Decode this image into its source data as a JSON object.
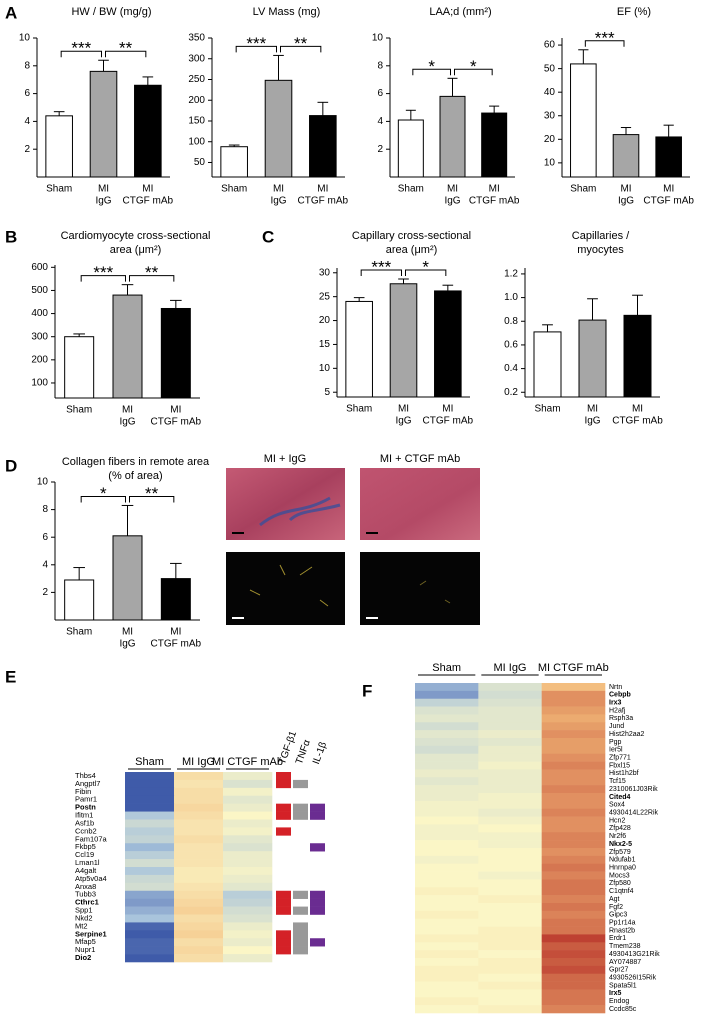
{
  "micrographs": {
    "labels": [
      "MI + IgG",
      "MI + CTGF mAb"
    ]
  },
  "chart_data": [
    {
      "type": "bar",
      "panel_label": "A",
      "title": [
        "HW / BW (mg/g)"
      ],
      "categories": [
        [
          "Sham"
        ],
        [
          "MI",
          "IgG"
        ],
        [
          "MI",
          "CTGF mAb"
        ]
      ],
      "values": [
        4.4,
        7.6,
        6.6
      ],
      "errors": [
        0.3,
        0.8,
        0.6
      ],
      "colors": [
        "#ffffff",
        "#a6a6a6",
        "#000000"
      ],
      "ylim": [
        0,
        10
      ],
      "yticks": [
        2,
        4,
        6,
        8,
        10
      ],
      "comparisons": [
        {
          "groups": [
            0,
            1
          ],
          "label": "***"
        },
        {
          "groups": [
            1,
            2
          ],
          "label": "**"
        }
      ]
    },
    {
      "type": "bar",
      "title": [
        "LV Mass (mg)"
      ],
      "categories": [
        [
          "Sham"
        ],
        [
          "MI",
          "IgG"
        ],
        [
          "MI",
          "CTGF mAb"
        ]
      ],
      "values": [
        88,
        248,
        163
      ],
      "errors": [
        4,
        60,
        32
      ],
      "colors": [
        "#ffffff",
        "#a6a6a6",
        "#000000"
      ],
      "ylim": [
        15,
        350
      ],
      "yticks": [
        50,
        100,
        150,
        200,
        250,
        300,
        350
      ],
      "comparisons": [
        {
          "groups": [
            0,
            1
          ],
          "label": "***"
        },
        {
          "groups": [
            1,
            2
          ],
          "label": "**"
        }
      ]
    },
    {
      "type": "bar",
      "title": [
        "LAA;d (mm²)"
      ],
      "categories": [
        [
          "Sham"
        ],
        [
          "MI",
          "IgG"
        ],
        [
          "MI",
          "CTGF mAb"
        ]
      ],
      "values": [
        4.1,
        5.8,
        4.6
      ],
      "errors": [
        0.7,
        1.3,
        0.5
      ],
      "colors": [
        "#ffffff",
        "#a6a6a6",
        "#000000"
      ],
      "ylim": [
        0,
        10
      ],
      "yticks": [
        2,
        4,
        6,
        8,
        10
      ],
      "comparisons": [
        {
          "groups": [
            0,
            1
          ],
          "label": "*"
        },
        {
          "groups": [
            1,
            2
          ],
          "label": "*"
        }
      ]
    },
    {
      "type": "bar",
      "title": [
        "EF (%)"
      ],
      "categories": [
        [
          "Sham"
        ],
        [
          "MI",
          "IgG"
        ],
        [
          "MI",
          "CTGF mAb"
        ]
      ],
      "values": [
        52,
        22,
        21
      ],
      "errors": [
        6,
        3,
        5
      ],
      "colors": [
        "#ffffff",
        "#a6a6a6",
        "#000000"
      ],
      "ylim": [
        4,
        63
      ],
      "yticks": [
        10,
        20,
        30,
        40,
        50,
        60
      ],
      "comparisons": [
        {
          "groups": [
            0,
            1
          ],
          "label": "***"
        }
      ]
    },
    {
      "type": "bar",
      "panel_label": "B",
      "title": [
        "Cardiomyocyte cross-sectional",
        "area (μm²)"
      ],
      "categories": [
        [
          "Sham"
        ],
        [
          "MI",
          "IgG"
        ],
        [
          "MI",
          "CTGF mAb"
        ]
      ],
      "values": [
        300,
        480,
        422
      ],
      "errors": [
        12,
        45,
        35
      ],
      "colors": [
        "#ffffff",
        "#a6a6a6",
        "#000000"
      ],
      "ylim": [
        35,
        610
      ],
      "yticks": [
        100,
        200,
        300,
        400,
        500,
        600
      ],
      "comparisons": [
        {
          "groups": [
            0,
            1
          ],
          "label": "***"
        },
        {
          "groups": [
            1,
            2
          ],
          "label": "**"
        }
      ]
    },
    {
      "type": "bar",
      "panel_label": "C",
      "title": [
        "Capillary cross-sectional",
        "area (μm²)"
      ],
      "categories": [
        [
          "Sham"
        ],
        [
          "MI",
          "IgG"
        ],
        [
          "MI",
          "CTGF mAb"
        ]
      ],
      "values": [
        24,
        27.7,
        26.2
      ],
      "errors": [
        0.8,
        1,
        1.2
      ],
      "colors": [
        "#ffffff",
        "#a6a6a6",
        "#000000"
      ],
      "ylim": [
        4,
        31
      ],
      "yticks": [
        5,
        10,
        15,
        20,
        25,
        30
      ],
      "comparisons": [
        {
          "groups": [
            0,
            1
          ],
          "label": "***"
        },
        {
          "groups": [
            1,
            2
          ],
          "label": "*"
        }
      ]
    },
    {
      "type": "bar",
      "title": [
        "Capillaries /",
        "myocytes"
      ],
      "categories": [
        [
          "Sham"
        ],
        [
          "MI",
          "IgG"
        ],
        [
          "MI",
          "CTGF mAb"
        ]
      ],
      "values": [
        0.71,
        0.81,
        0.85
      ],
      "errors": [
        0.06,
        0.18,
        0.17
      ],
      "colors": [
        "#ffffff",
        "#a6a6a6",
        "#000000"
      ],
      "ylim": [
        0.16,
        1.25
      ],
      "yticks": [
        0.2,
        0.4,
        0.6,
        0.8,
        {
          "value": 1,
          "label": "1.0"
        },
        1.2
      ],
      "comparisons": []
    },
    {
      "type": "bar",
      "panel_label": "D",
      "title": [
        "Collagen fibers in remote area",
        "(% of area)"
      ],
      "categories": [
        [
          "Sham"
        ],
        [
          "MI",
          "IgG"
        ],
        [
          "MI",
          "CTGF mAb"
        ]
      ],
      "values": [
        2.9,
        6.1,
        3.0
      ],
      "errors": [
        0.9,
        2.2,
        1.1
      ],
      "colors": [
        "#ffffff",
        "#a6a6a6",
        "#000000"
      ],
      "ylim": [
        0,
        10
      ],
      "yticks": [
        2,
        4,
        6,
        8,
        10
      ],
      "comparisons": [
        {
          "groups": [
            0,
            1
          ],
          "label": "*"
        },
        {
          "groups": [
            1,
            2
          ],
          "label": "**"
        }
      ]
    },
    {
      "type": "heatmap",
      "panel_label": "E",
      "groups": [
        "Sham",
        "MI IgG",
        "MI CTGF mAb"
      ],
      "rows": [
        "Thbs4",
        "Angptl7",
        "Fibin",
        "Pamr1",
        "Postn",
        "Ifitm1",
        "Asf1b",
        "Ccnb2",
        "Fam107a",
        "Fkbp5",
        "Ccl19",
        "Lman1l",
        "A4galt",
        "Atp5v0a4",
        "Anxa8",
        "Tubb3",
        "Cthrc1",
        "Spp1",
        "Nkd2",
        "Mt2",
        "Serpine1",
        "Mfap5",
        "Nupr1",
        "Dio2"
      ],
      "highlight_rows": [
        4,
        16,
        20,
        23
      ],
      "highlight_color": "#d42127",
      "values": [
        [
          -2,
          0.4,
          -0.2
        ],
        [
          -2,
          0.3,
          -0.4
        ],
        [
          -2,
          0.4,
          -0.1
        ],
        [
          -2,
          0.4,
          -0.3
        ],
        [
          -2,
          0.5,
          -0.2
        ],
        [
          -0.9,
          0.4,
          0
        ],
        [
          -0.6,
          0.3,
          -0.2
        ],
        [
          -0.8,
          0.3,
          -0.1
        ],
        [
          -0.7,
          0.4,
          -0.3
        ],
        [
          -1.1,
          0.3,
          -0.4
        ],
        [
          -0.8,
          0.3,
          -0.2
        ],
        [
          -0.5,
          0.3,
          -0.2
        ],
        [
          -0.9,
          0.2,
          -0.1
        ],
        [
          -0.6,
          0.2,
          -0.2
        ],
        [
          -0.5,
          0.3,
          -0.3
        ],
        [
          -1.3,
          0.4,
          -0.8
        ],
        [
          -1.4,
          0.5,
          -0.7
        ],
        [
          -1.2,
          0.6,
          -0.5
        ],
        [
          -1,
          0.4,
          -0.4
        ],
        [
          -1.9,
          0.5,
          -0.2
        ],
        [
          -2,
          0.6,
          -0.1
        ],
        [
          -1.9,
          0.4,
          -0.2
        ],
        [
          -1.9,
          0.5,
          0
        ],
        [
          -2,
          0.4,
          -0.2
        ]
      ],
      "vlim": [
        -2,
        2
      ],
      "colors": [
        "#3f5ba9",
        "#a9c4dc",
        "#fbf6c6",
        "#f2b878",
        "#b8342a"
      ],
      "annotations": [
        {
          "name": "TGF-β1",
          "color": "#d42127",
          "rows": [
            0,
            1,
            4,
            5,
            7,
            15,
            16,
            17,
            20,
            21,
            22
          ]
        },
        {
          "name": "TNFα",
          "color": "#999999",
          "rows": [
            1,
            4,
            5,
            15,
            17,
            19,
            20,
            21,
            22
          ]
        },
        {
          "name": "IL-1β",
          "color": "#6a2c91",
          "rows": [
            4,
            5,
            9,
            15,
            16,
            17,
            21
          ]
        }
      ]
    },
    {
      "type": "heatmap",
      "panel_label": "F",
      "groups": [
        "Sham",
        "MI IgG",
        "MI CTGF mAb"
      ],
      "rows": [
        "Nrtn",
        "Cebpb",
        "Irx3",
        "H2afj",
        "Rsph3a",
        "Jund",
        "Hist2h2aa2",
        "Pgp",
        "Ier5l",
        "Zfp771",
        "Fbxl15",
        "Hist1h2bf",
        "Tcf15",
        "2310061J03Rik",
        "Cited4",
        "Sox4",
        "4930414L22Rik",
        "Hcn2",
        "Zfp428",
        "Nr2f6",
        "Nkx2-5",
        "Zfp579",
        "Ndufab1",
        "Hnrnpa0",
        "Mocs3",
        "Zfp580",
        "C1qtnf4",
        "Agt",
        "Fgf2",
        "Gipc3",
        "Pp1r14a",
        "Rnast2b",
        "Erdr1",
        "Tmem238",
        "4930413G21Rik",
        "AY074887",
        "Gpr27",
        "4930526I15Rik",
        "Spata5l1",
        "Irx5",
        "Endog",
        "Ccdc85c"
      ],
      "highlight_rows": [
        1,
        2,
        14,
        20,
        39
      ],
      "highlight_color": "#d42127",
      "values": [
        [
          -1.2,
          -0.4,
          0.9
        ],
        [
          -1.4,
          -0.5,
          1.3
        ],
        [
          -0.7,
          -0.4,
          1.3
        ],
        [
          -0.4,
          -0.3,
          1.2
        ],
        [
          -0.3,
          -0.3,
          1.1
        ],
        [
          -0.5,
          -0.3,
          1.2
        ],
        [
          -0.3,
          -0.2,
          1.3
        ],
        [
          -0.4,
          -0.3,
          1.2
        ],
        [
          -0.5,
          -0.2,
          1.2
        ],
        [
          -0.3,
          -0.2,
          1.3
        ],
        [
          -0.3,
          -0.1,
          1.4
        ],
        [
          -0.2,
          -0.2,
          1.3
        ],
        [
          -0.3,
          -0.2,
          1.3
        ],
        [
          -0.2,
          -0.2,
          1.4
        ],
        [
          -0.2,
          -0.1,
          1.3
        ],
        [
          -0.1,
          -0.1,
          1.3
        ],
        [
          -0.1,
          -0.2,
          1.4
        ],
        [
          0,
          -0.1,
          1.3
        ],
        [
          -0.1,
          0,
          1.3
        ],
        [
          -0.1,
          -0.1,
          1.4
        ],
        [
          0,
          -0.1,
          1.4
        ],
        [
          0,
          0,
          1.3
        ],
        [
          -0.1,
          0,
          1.4
        ],
        [
          0,
          0,
          1.5
        ],
        [
          0,
          -0.1,
          1.4
        ],
        [
          0,
          0,
          1.5
        ],
        [
          0.1,
          0,
          1.5
        ],
        [
          0,
          0.1,
          1.4
        ],
        [
          0,
          0,
          1.5
        ],
        [
          0.1,
          0,
          1.4
        ],
        [
          0,
          0,
          1.5
        ],
        [
          0,
          0.1,
          1.5
        ],
        [
          0.1,
          0.1,
          1.9
        ],
        [
          0,
          0.1,
          1.7
        ],
        [
          0.1,
          0,
          1.8
        ],
        [
          0,
          0.1,
          1.7
        ],
        [
          0.1,
          0.1,
          1.8
        ],
        [
          0.1,
          0,
          1.6
        ],
        [
          0,
          0.1,
          1.6
        ],
        [
          0,
          0,
          1.5
        ],
        [
          0.1,
          0,
          1.5
        ],
        [
          0,
          0.1,
          1.4
        ]
      ],
      "vlim": [
        -2,
        2
      ],
      "colors": [
        "#3f5ba9",
        "#a9c4dc",
        "#fbf6c6",
        "#f2b878",
        "#b8342a"
      ],
      "annotations": []
    }
  ]
}
